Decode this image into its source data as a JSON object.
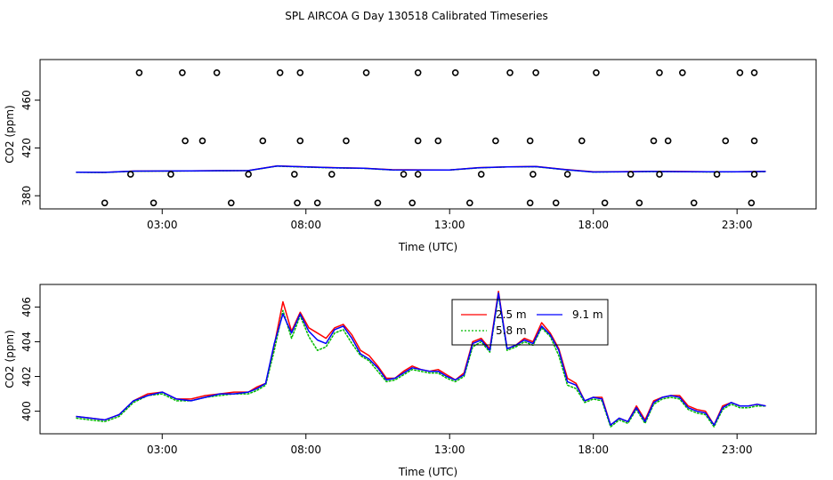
{
  "chart_data": [
    {
      "type": "line",
      "title": "SPL AIRCOA G  Day 130518  Calibrated Timeseries",
      "xlabel": "Time (UTC)",
      "ylabel": "CO2 (ppm)",
      "xlim": [
        -1.25,
        25.75
      ],
      "ylim": [
        369,
        494
      ],
      "x_ticks": [
        3,
        8,
        13,
        18,
        23
      ],
      "x_tick_labels": [
        "03:00",
        "08:00",
        "13:00",
        "18:00",
        "23:00"
      ],
      "y_ticks": [
        380,
        420,
        460
      ],
      "y_tick_labels": [
        "380",
        "420",
        "460"
      ],
      "series": [
        {
          "name": "2.5 m",
          "color": "#ff0000",
          "x": [
            0,
            1,
            2,
            3,
            4,
            5,
            6,
            7,
            8,
            9,
            10,
            11,
            12,
            13,
            14,
            15,
            16,
            17,
            18,
            19,
            20,
            21,
            22,
            23,
            24
          ],
          "y": [
            399.7,
            399.6,
            400.6,
            400.7,
            400.8,
            401.0,
            401.1,
            405.0,
            404.2,
            403.5,
            403.1,
            401.8,
            401.7,
            401.6,
            403.5,
            404.2,
            404.5,
            402.0,
            400.0,
            400.2,
            400.4,
            400.3,
            400.1,
            400.1,
            400.3
          ]
        },
        {
          "name": "5.8 m",
          "color": "#00bb00",
          "x": [
            0,
            1,
            2,
            3,
            4,
            5,
            6,
            7,
            8,
            9,
            10,
            11,
            12,
            13,
            14,
            15,
            16,
            17,
            18,
            19,
            20,
            21,
            22,
            23,
            24
          ],
          "y": [
            399.6,
            399.5,
            400.5,
            400.6,
            400.7,
            400.9,
            401.0,
            404.8,
            404.0,
            403.3,
            402.9,
            401.6,
            401.5,
            401.5,
            403.3,
            404.1,
            404.3,
            401.8,
            399.8,
            400.0,
            400.2,
            400.1,
            399.9,
            400.0,
            400.2
          ]
        },
        {
          "name": "9.1 m",
          "color": "#0000ff",
          "x": [
            0,
            1,
            2,
            3,
            4,
            5,
            6,
            7,
            8,
            9,
            10,
            11,
            12,
            13,
            14,
            15,
            16,
            17,
            18,
            19,
            20,
            21,
            22,
            23,
            24
          ],
          "y": [
            399.7,
            399.6,
            400.6,
            400.7,
            400.8,
            401.0,
            401.1,
            404.9,
            404.1,
            403.4,
            403.0,
            401.7,
            401.6,
            401.6,
            403.4,
            404.2,
            404.4,
            401.9,
            399.9,
            400.1,
            400.3,
            400.2,
            400.0,
            400.1,
            400.3
          ]
        }
      ],
      "points": {
        "x": [
          1.0,
          1.9,
          2.7,
          3.3,
          2.2,
          3.8,
          3.7,
          4.4,
          4.9,
          5.4,
          6.0,
          6.5,
          7.1,
          7.7,
          7.8,
          7.8,
          7.6,
          8.4,
          8.9,
          9.4,
          10.1,
          10.5,
          11.4,
          11.7,
          11.9,
          11.9,
          11.9,
          12.6,
          13.2,
          13.7,
          14.1,
          14.6,
          15.1,
          15.8,
          15.8,
          15.9,
          16.0,
          16.7,
          17.1,
          17.6,
          18.1,
          18.4,
          19.3,
          19.6,
          20.1,
          20.3,
          20.3,
          20.6,
          21.1,
          21.5,
          22.3,
          22.6,
          23.1,
          23.5,
          23.6,
          23.6,
          23.6
        ],
        "y": [
          374,
          398,
          374,
          398,
          483,
          426,
          483,
          426,
          483,
          374,
          398,
          426,
          483,
          374,
          483,
          426,
          398,
          374,
          398,
          426,
          483,
          374,
          398,
          374,
          426,
          483,
          398,
          426,
          483,
          374,
          398,
          426,
          483,
          374,
          426,
          398,
          483,
          374,
          398,
          426,
          483,
          374,
          398,
          374,
          426,
          483,
          398,
          426,
          483,
          374,
          398,
          426,
          483,
          374,
          426,
          398,
          483
        ]
      }
    },
    {
      "type": "line",
      "title": "",
      "xlabel": "Time (UTC)",
      "ylabel": "CO2 (ppm)",
      "xlim": [
        -1.25,
        25.75
      ],
      "ylim": [
        398.7,
        407.3
      ],
      "x_ticks": [
        3,
        8,
        13,
        18,
        23
      ],
      "x_tick_labels": [
        "03:00",
        "08:00",
        "13:00",
        "18:00",
        "23:00"
      ],
      "y_ticks": [
        400,
        402,
        404,
        406
      ],
      "y_tick_labels": [
        "400",
        "402",
        "404",
        "406"
      ],
      "legend": {
        "position": "top-center",
        "entries": [
          "2.5 m",
          "5.8 m",
          "9.1 m"
        ]
      },
      "series": [
        {
          "name": "2.5 m",
          "color": "#ff0000",
          "x": [
            0,
            0.5,
            1,
            1.5,
            2,
            2.5,
            3,
            3.5,
            4,
            4.5,
            5,
            5.5,
            6,
            6.3,
            6.6,
            6.9,
            7.2,
            7.5,
            7.8,
            8.1,
            8.4,
            8.7,
            9,
            9.3,
            9.6,
            9.9,
            10.2,
            10.5,
            10.8,
            11.1,
            11.4,
            11.7,
            12,
            12.3,
            12.6,
            12.9,
            13.2,
            13.5,
            13.8,
            14.1,
            14.4,
            14.7,
            15,
            15.3,
            15.6,
            15.9,
            16.2,
            16.5,
            16.8,
            17.1,
            17.4,
            17.7,
            18,
            18.3,
            18.6,
            18.9,
            19.2,
            19.5,
            19.8,
            20.1,
            20.4,
            20.7,
            21,
            21.3,
            21.6,
            21.9,
            22.2,
            22.5,
            22.8,
            23.1,
            23.4,
            23.7,
            24
          ],
          "y": [
            399.7,
            399.6,
            399.5,
            399.8,
            400.6,
            401.0,
            401.1,
            400.7,
            400.7,
            400.9,
            401.0,
            401.1,
            401.1,
            401.4,
            401.6,
            403.8,
            406.3,
            404.6,
            405.7,
            404.8,
            404.5,
            404.2,
            404.8,
            405.0,
            404.4,
            403.5,
            403.2,
            402.6,
            401.9,
            401.9,
            402.3,
            402.6,
            402.4,
            402.3,
            402.4,
            402.1,
            401.8,
            402.2,
            404.0,
            404.2,
            403.6,
            406.9,
            403.6,
            403.8,
            404.2,
            404.0,
            405.1,
            404.5,
            403.6,
            401.9,
            401.6,
            400.6,
            400.8,
            400.8,
            399.2,
            399.6,
            399.4,
            400.3,
            399.5,
            400.6,
            400.8,
            400.9,
            400.9,
            400.3,
            400.1,
            400.0,
            399.2,
            400.3,
            400.5,
            400.3,
            400.3,
            400.4,
            400.3
          ]
        },
        {
          "name": "5.8 m",
          "color": "#00bb00",
          "x": [
            0,
            0.5,
            1,
            1.5,
            2,
            2.5,
            3,
            3.5,
            4,
            4.5,
            5,
            5.5,
            6,
            6.3,
            6.6,
            6.9,
            7.2,
            7.5,
            7.8,
            8.1,
            8.4,
            8.7,
            9,
            9.3,
            9.6,
            9.9,
            10.2,
            10.5,
            10.8,
            11.1,
            11.4,
            11.7,
            12,
            12.3,
            12.6,
            12.9,
            13.2,
            13.5,
            13.8,
            14.1,
            14.4,
            14.7,
            15,
            15.3,
            15.6,
            15.9,
            16.2,
            16.5,
            16.8,
            17.1,
            17.4,
            17.7,
            18,
            18.3,
            18.6,
            18.9,
            19.2,
            19.5,
            19.8,
            20.1,
            20.4,
            20.7,
            21,
            21.3,
            21.6,
            21.9,
            22.2,
            22.5,
            22.8,
            23.1,
            23.4,
            23.7,
            24
          ],
          "y": [
            399.6,
            399.5,
            399.4,
            399.7,
            400.5,
            400.9,
            401.0,
            400.6,
            400.6,
            400.8,
            400.9,
            401.0,
            401.0,
            401.2,
            401.5,
            403.5,
            405.8,
            404.2,
            405.5,
            404.3,
            403.5,
            403.7,
            404.5,
            404.7,
            403.9,
            403.2,
            402.9,
            402.3,
            401.7,
            401.8,
            402.1,
            402.4,
            402.3,
            402.2,
            402.2,
            401.9,
            401.7,
            402.0,
            403.7,
            404.0,
            403.4,
            406.7,
            403.5,
            403.7,
            404.0,
            403.8,
            404.8,
            404.3,
            403.2,
            401.5,
            401.3,
            400.5,
            400.7,
            400.6,
            399.1,
            399.5,
            399.3,
            400.1,
            399.3,
            400.4,
            400.7,
            400.8,
            400.7,
            400.1,
            399.9,
            399.8,
            399.1,
            400.1,
            400.4,
            400.2,
            400.2,
            400.3,
            400.3
          ]
        },
        {
          "name": "9.1 m",
          "color": "#0000ff",
          "x": [
            0,
            0.5,
            1,
            1.5,
            2,
            2.5,
            3,
            3.5,
            4,
            4.5,
            5,
            5.5,
            6,
            6.3,
            6.6,
            6.9,
            7.2,
            7.5,
            7.8,
            8.1,
            8.4,
            8.7,
            9,
            9.3,
            9.6,
            9.9,
            10.2,
            10.5,
            10.8,
            11.1,
            11.4,
            11.7,
            12,
            12.3,
            12.6,
            12.9,
            13.2,
            13.5,
            13.8,
            14.1,
            14.4,
            14.7,
            15,
            15.3,
            15.6,
            15.9,
            16.2,
            16.5,
            16.8,
            17.1,
            17.4,
            17.7,
            18,
            18.3,
            18.6,
            18.9,
            19.2,
            19.5,
            19.8,
            20.1,
            20.4,
            20.7,
            21,
            21.3,
            21.6,
            21.9,
            22.2,
            22.5,
            22.8,
            23.1,
            23.4,
            23.7,
            24
          ],
          "y": [
            399.7,
            399.6,
            399.5,
            399.8,
            400.6,
            400.9,
            401.1,
            400.7,
            400.6,
            400.8,
            401.0,
            401.0,
            401.1,
            401.3,
            401.6,
            403.9,
            405.6,
            404.5,
            405.6,
            404.6,
            404.1,
            403.9,
            404.7,
            404.9,
            404.2,
            403.3,
            403.0,
            402.5,
            401.8,
            401.9,
            402.2,
            402.5,
            402.4,
            402.3,
            402.3,
            402.0,
            401.8,
            402.1,
            403.9,
            404.1,
            403.5,
            406.8,
            403.6,
            403.8,
            404.1,
            403.9,
            404.9,
            404.4,
            403.5,
            401.7,
            401.5,
            400.6,
            400.8,
            400.7,
            399.2,
            399.6,
            399.4,
            400.2,
            399.4,
            400.5,
            400.8,
            400.9,
            400.8,
            400.2,
            400.0,
            399.9,
            399.2,
            400.2,
            400.5,
            400.3,
            400.3,
            400.4,
            400.3
          ]
        }
      ]
    }
  ]
}
